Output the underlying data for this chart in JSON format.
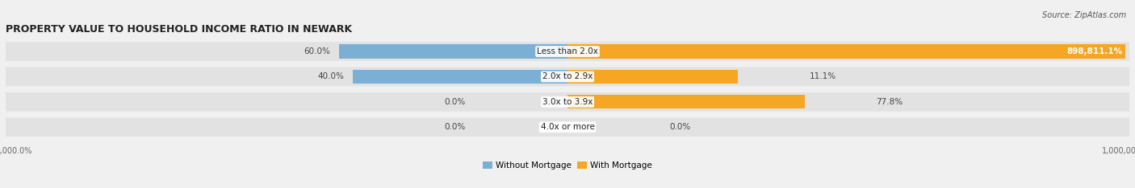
{
  "title": "PROPERTY VALUE TO HOUSEHOLD INCOME RATIO IN NEWARK",
  "source": "Source: ZipAtlas.com",
  "categories": [
    "Less than 2.0x",
    "2.0x to 2.9x",
    "3.0x to 3.9x",
    "4.0x or more"
  ],
  "without_mortgage": [
    60.0,
    40.0,
    0.0,
    0.0
  ],
  "with_mortgage": [
    898811.1,
    11.1,
    77.8,
    0.0
  ],
  "without_mortgage_color": "#7bafd4",
  "with_mortgage_color": "#f5a623",
  "bg_color": "#f0f0f0",
  "row_bg_color": "#e2e2e2",
  "title_fontsize": 9,
  "source_fontsize": 7,
  "label_fontsize": 7.5,
  "bar_height": 0.55,
  "legend_labels": [
    "Without Mortgage",
    "With Mortgage"
  ],
  "xlim": 1000000,
  "linthresh": 1.0
}
